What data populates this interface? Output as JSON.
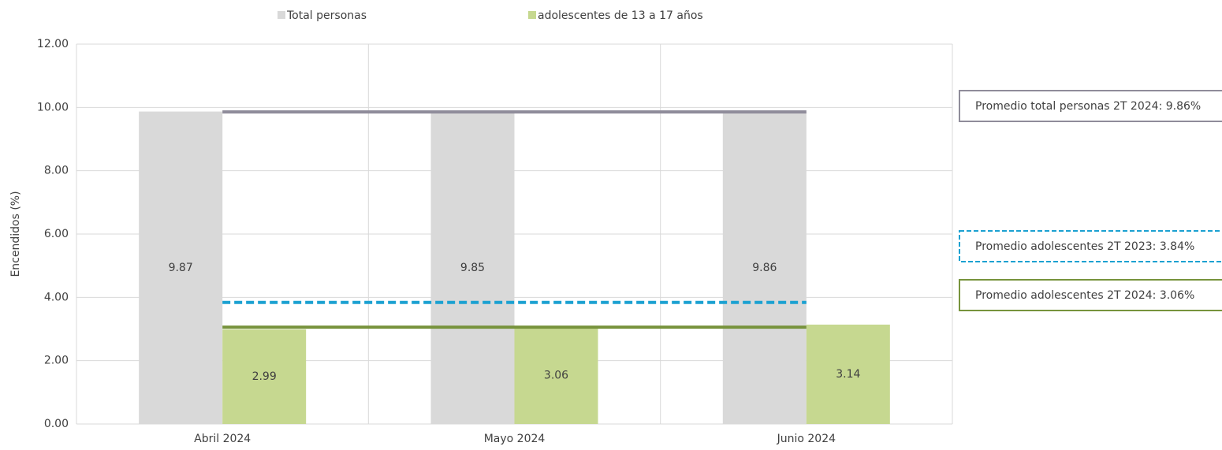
{
  "chart_data": {
    "type": "bar",
    "y_label": "Encendidos (%)",
    "categories": [
      "Abril 2024",
      "Mayo 2024",
      "Junio 2024"
    ],
    "series": [
      {
        "name": "Total personas",
        "color": "#d9d9d9",
        "values": [
          9.87,
          9.85,
          9.86
        ]
      },
      {
        "name": "adolescentes de 13 a 17 años",
        "color": "#c6d890",
        "values": [
          2.99,
          3.06,
          3.14
        ]
      }
    ],
    "ylim": [
      0,
      12
    ],
    "yticks": [
      {
        "value": 0,
        "label": "0.00"
      },
      {
        "value": 2,
        "label": "2.00"
      },
      {
        "value": 4,
        "label": "4.00"
      },
      {
        "value": 6,
        "label": "6.00"
      },
      {
        "value": 8,
        "label": "8.00"
      },
      {
        "value": 10,
        "label": "10.00"
      },
      {
        "value": 12,
        "label": "12.00"
      }
    ],
    "grid": true,
    "legend": "top",
    "reference_lines": [
      {
        "label": "Promedio total personas 2T 2024: 9.86%",
        "value": 9.86,
        "color": "#8f8c9a",
        "style": "solid"
      },
      {
        "label": "Promedio adolescentes 2T 2023: 3.84%",
        "value": 3.84,
        "color": "#1ba1d1",
        "style": "dashed"
      },
      {
        "label": "Promedio adolescentes 2T 2024: 3.06%",
        "value": 3.06,
        "color": "#77933c",
        "style": "solid"
      }
    ]
  }
}
